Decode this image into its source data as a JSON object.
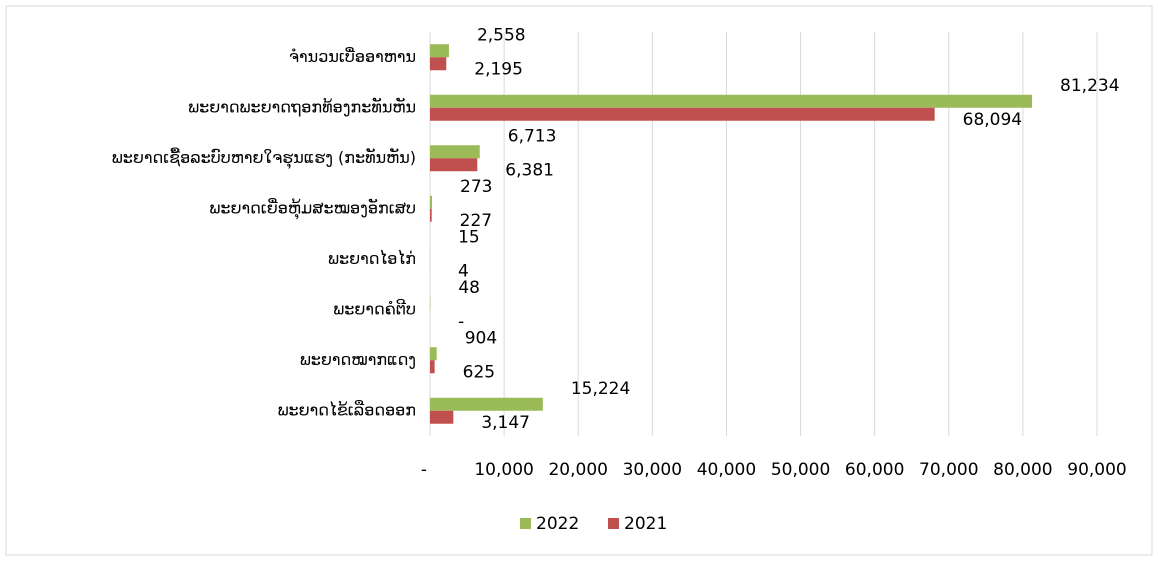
{
  "chart_data": {
    "type": "bar",
    "orientation": "horizontal",
    "categories": [
      "ຈຳນວນເບື່ອອາຫານ",
      "ພະຍາດພະຍາດຖອກທ້ອງກະທັນຫັນ",
      "ພະຍາດເຊື້ອລະບົບຫາຍໃຈຮຸນແຮງ (ກະທັນຫັນ)",
      "ພະຍາດເຍື່ອຫຸ້ມສະໝອງອັກເສບ",
      "ພະຍາດໄອໄກ່",
      "ພະຍາດຄໍຕີບ",
      "ພະຍາດໝາກແດງ",
      "ພະຍາດໄຂ້ເລືອດອອກ"
    ],
    "series": [
      {
        "name": "2022",
        "color": "#9bbb59",
        "values": [
          2558,
          81234,
          6713,
          273,
          15,
          48,
          904,
          15224
        ],
        "value_labels": [
          "2,558",
          "81,234",
          "6,713",
          "273",
          "15",
          "48",
          "904",
          "15,224"
        ]
      },
      {
        "name": "2021",
        "color": "#c0504d",
        "values": [
          2195,
          68094,
          6381,
          227,
          4,
          0,
          625,
          3147
        ],
        "value_labels": [
          "2,195",
          "68,094",
          "6,381",
          "227",
          "4",
          "-",
          "625",
          "3,147"
        ]
      }
    ],
    "xlim": [
      0,
      90000
    ],
    "xticks": [
      {
        "value": 0,
        "label": "-"
      },
      {
        "value": 10000,
        "label": "10,000"
      },
      {
        "value": 20000,
        "label": "20,000"
      },
      {
        "value": 30000,
        "label": "30,000"
      },
      {
        "value": 40000,
        "label": "40,000"
      },
      {
        "value": 50000,
        "label": "50,000"
      },
      {
        "value": 60000,
        "label": "60,000"
      },
      {
        "value": 70000,
        "label": "70,000"
      },
      {
        "value": 80000,
        "label": "80,000"
      },
      {
        "value": 90000,
        "label": "90,000"
      }
    ],
    "grid": true,
    "legend": "bottom"
  }
}
